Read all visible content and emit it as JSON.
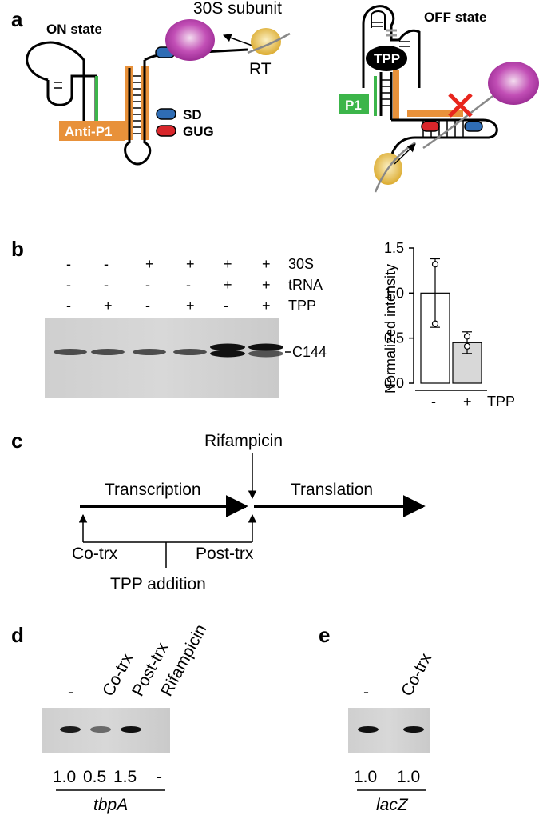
{
  "panel_a": {
    "letter": "a",
    "on_state": "ON state",
    "subunit": "30S subunit",
    "rt": "RT",
    "sd": "SD",
    "gug": "GUG",
    "anti_p1": "Anti-P1",
    "off_state": "OFF state",
    "tpp": "TPP",
    "p1": "P1"
  },
  "panel_b": {
    "letter": "b",
    "row_labels": [
      "30S",
      "tRNA",
      "TPP"
    ],
    "lanes": [
      [
        "-",
        "-",
        "-"
      ],
      [
        "-",
        "-",
        "+"
      ],
      [
        "+",
        "-",
        "-"
      ],
      [
        "+",
        "-",
        "+"
      ],
      [
        "+",
        "+",
        "-"
      ],
      [
        "+",
        "+",
        "+"
      ]
    ],
    "band_label": "C144",
    "chart_data": {
      "type": "bar",
      "categories": [
        "-",
        "+"
      ],
      "values": [
        1.0,
        0.45
      ],
      "errors": [
        0.38,
        0.12
      ],
      "points": [
        [
          1.32,
          0.66
        ],
        [
          0.52,
          0.41
        ]
      ],
      "ylabel": "Normalized intensity",
      "xlabel": "TPP",
      "ylim": [
        0,
        1.5
      ],
      "yticks": [
        "0.0",
        "0.5",
        "1.0",
        "1.5"
      ],
      "colors": [
        "#ffffff",
        "#d8d8d8"
      ]
    }
  },
  "panel_c": {
    "letter": "c",
    "rifampicin": "Rifampicin",
    "transcription": "Transcription",
    "translation": "Translation",
    "co_trx": "Co-trx",
    "post_trx": "Post-trx",
    "tpp_addition": "TPP addition"
  },
  "panel_d": {
    "letter": "d",
    "lanes": [
      "-",
      "Co-trx",
      "Post-trx",
      "Rifampicin"
    ],
    "values": [
      "1.0",
      "0.5",
      "1.5",
      "-"
    ],
    "gene": "tbpA"
  },
  "panel_e": {
    "letter": "e",
    "lanes": [
      "-",
      "Co-trx"
    ],
    "values": [
      "1.0",
      "1.0"
    ],
    "gene": "lacZ"
  },
  "colors": {
    "orange": "#e8913a",
    "green": "#3cb54a",
    "blue": "#2f6db5",
    "red": "#d8262b",
    "magenta": "#b03aa6",
    "gold": "#e5bd3b"
  }
}
